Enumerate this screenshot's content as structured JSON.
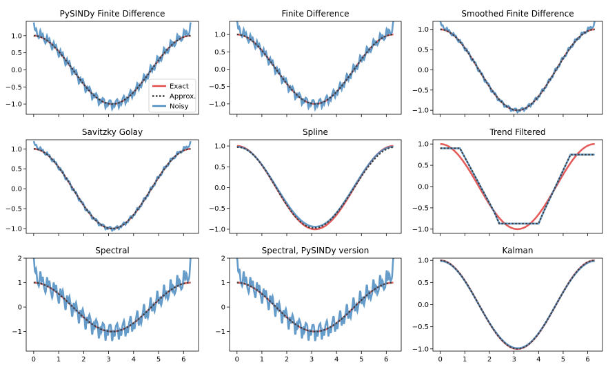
{
  "colors": {
    "exact": "#e24a4a",
    "approx": "#3c3c3c",
    "noisy": "#4a8bc0"
  },
  "chart_data": [
    {
      "type": "line",
      "title": "PySINDy Finite Difference",
      "xlim": [
        -0.3,
        6.6
      ],
      "ylim": [
        -1.3,
        1.42
      ],
      "yticks": [
        -1.0,
        -0.5,
        0.0,
        0.5,
        1.0
      ],
      "approx_kind": "cos",
      "noise": "medium",
      "legend": {
        "position": "lower-right",
        "entries": [
          "Exact",
          "Approx.",
          "Noisy"
        ]
      }
    },
    {
      "type": "line",
      "title": "Finite Difference",
      "xlim": [
        -0.3,
        6.6
      ],
      "ylim": [
        -1.3,
        1.38
      ],
      "yticks": [
        -1.0,
        -0.5,
        0.0,
        0.5,
        1.0
      ],
      "approx_kind": "cos",
      "noise": "medium"
    },
    {
      "type": "line",
      "title": "Smoothed Finite Difference",
      "xlim": [
        -0.3,
        6.6
      ],
      "ylim": [
        -1.1,
        1.2
      ],
      "yticks": [
        -1.0,
        -0.5,
        0.0,
        0.5,
        1.0
      ],
      "approx_kind": "cos",
      "noise": "low"
    },
    {
      "type": "line",
      "title": "Savitzky Golay",
      "xlim": [
        -0.3,
        6.6
      ],
      "ylim": [
        -1.12,
        1.23
      ],
      "yticks": [
        -1.0,
        -0.5,
        0.0,
        0.5,
        1.0
      ],
      "approx_kind": "cos",
      "noise": "low"
    },
    {
      "type": "line",
      "title": "Spline",
      "xlim": [
        -0.3,
        6.6
      ],
      "ylim": [
        -1.1,
        1.15
      ],
      "yticks": [
        -1.0,
        -0.5,
        0.0,
        0.5,
        1.0
      ],
      "approx_kind": "spline",
      "noise": "none"
    },
    {
      "type": "line",
      "title": "Trend Filtered",
      "xlim": [
        -0.3,
        6.6
      ],
      "ylim": [
        -1.1,
        1.1
      ],
      "yticks": [
        -1.0,
        -0.5,
        0.0,
        0.5,
        1.0
      ],
      "approx_kind": "trend",
      "noise": "none",
      "trend_points": [
        [
          0.0,
          0.9
        ],
        [
          0.8,
          0.9
        ],
        [
          2.2,
          -0.6
        ],
        [
          2.4,
          -0.87
        ],
        [
          4.0,
          -0.87
        ],
        [
          4.2,
          -0.6
        ],
        [
          5.3,
          0.75
        ],
        [
          6.28,
          0.75
        ]
      ]
    },
    {
      "type": "line",
      "title": "Spectral",
      "xlim": [
        -0.3,
        6.6
      ],
      "ylim": [
        -1.8,
        2.0
      ],
      "yticks": [
        -1,
        0,
        1,
        2
      ],
      "approx_kind": "cos",
      "noise": "high"
    },
    {
      "type": "line",
      "title": "Spectral, PySINDy version",
      "xlim": [
        -0.3,
        6.6
      ],
      "ylim": [
        -1.8,
        2.0
      ],
      "yticks": [
        -1,
        0,
        1,
        2
      ],
      "approx_kind": "cos",
      "noise": "high"
    },
    {
      "type": "line",
      "title": "Kalman",
      "xlim": [
        -0.3,
        6.6
      ],
      "ylim": [
        -1.05,
        1.05
      ],
      "yticks": [
        -1.0,
        -0.5,
        0.0,
        0.5,
        1.0
      ],
      "approx_kind": "cos",
      "noise": "none"
    }
  ],
  "shared_xticks": [
    0,
    1,
    2,
    3,
    4,
    5,
    6
  ],
  "series_names": [
    "Exact",
    "Approx.",
    "Noisy"
  ]
}
